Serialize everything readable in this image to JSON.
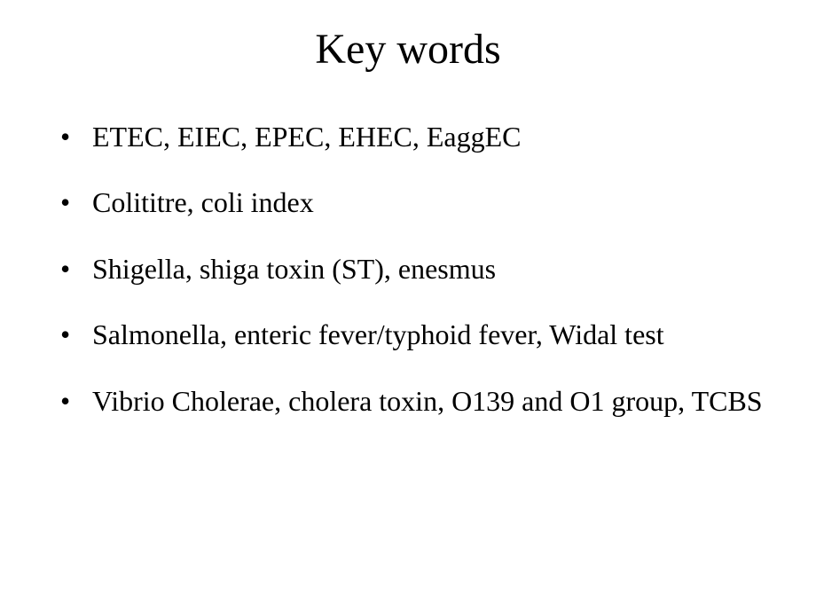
{
  "slide": {
    "title": "Key words",
    "title_fontsize": 48,
    "title_color": "#000000",
    "background_color": "#ffffff",
    "body_fontsize": 32,
    "body_color": "#000000",
    "font_family": "Times New Roman",
    "bullets": [
      "ETEC, EIEC, EPEC, EHEC, EaggEC",
      "Colititre, coli index",
      "Shigella, shiga toxin (ST), enesmus",
      "Salmonella, enteric fever/typhoid fever, Widal test",
      "Vibrio Cholerae, cholera toxin, O139 and O1 group, TCBS"
    ]
  }
}
